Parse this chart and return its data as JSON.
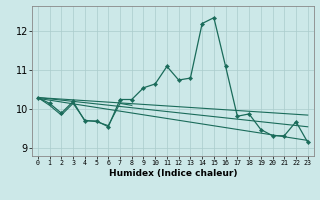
{
  "xlabel": "Humidex (Indice chaleur)",
  "background_color": "#cce8e8",
  "grid_color": "#aacccc",
  "line_color": "#1a6b5a",
  "xlim": [
    -0.5,
    23.5
  ],
  "ylim": [
    8.8,
    12.65
  ],
  "yticks": [
    9,
    10,
    11,
    12
  ],
  "xtick_labels": [
    "0",
    "1",
    "2",
    "3",
    "4",
    "5",
    "6",
    "7",
    "8",
    "9",
    "10",
    "11",
    "12",
    "13",
    "14",
    "15",
    "16",
    "17",
    "18",
    "19",
    "20",
    "21",
    "22",
    "23"
  ],
  "series_main": {
    "x": [
      0,
      1,
      2,
      3,
      4,
      5,
      6,
      7,
      8,
      9,
      10,
      11,
      12,
      13,
      14,
      15,
      16,
      17,
      18,
      19,
      20,
      21,
      22,
      23
    ],
    "y": [
      10.3,
      10.15,
      9.9,
      10.2,
      9.7,
      9.7,
      9.55,
      10.25,
      10.25,
      10.55,
      10.65,
      11.1,
      10.75,
      10.8,
      12.2,
      12.35,
      11.1,
      9.82,
      9.88,
      9.48,
      9.32,
      9.32,
      9.68,
      9.15
    ]
  },
  "series_flat": [
    {
      "x": [
        0,
        23
      ],
      "y": [
        10.3,
        9.85
      ]
    },
    {
      "x": [
        0,
        23
      ],
      "y": [
        10.3,
        9.55
      ]
    },
    {
      "x": [
        0,
        23
      ],
      "y": [
        10.28,
        9.2
      ]
    }
  ],
  "series_extra": [
    {
      "x": [
        0,
        1,
        2,
        3,
        4,
        5,
        6,
        7,
        8
      ],
      "y": [
        10.3,
        10.1,
        9.85,
        10.15,
        9.72,
        9.68,
        9.58,
        10.15,
        10.1
      ]
    }
  ]
}
